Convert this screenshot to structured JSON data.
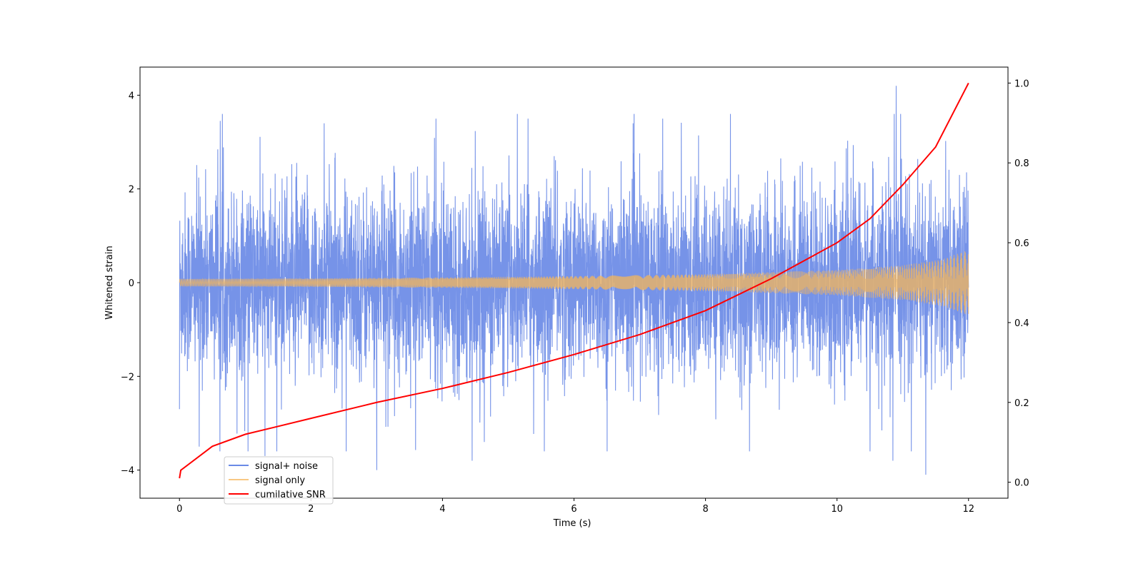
{
  "chart_data": {
    "type": "line",
    "title": "",
    "xlabel": "Time (s)",
    "ylabel": "Whitened strain",
    "y2label": "",
    "xlim": [
      -0.6,
      12.6
    ],
    "ylim": [
      -4.6,
      4.6
    ],
    "y2lim": [
      -0.04,
      1.04
    ],
    "xticks": [
      0,
      2,
      4,
      6,
      8,
      10,
      12
    ],
    "yticks": [
      -4,
      -2,
      0,
      2,
      4
    ],
    "y2ticks": [
      0.0,
      0.2,
      0.4,
      0.6,
      0.8,
      1.0
    ],
    "legend": {
      "placement": "lower-left"
    },
    "colors": {
      "noise": "#6a8ae6",
      "signal": "#f5b65a",
      "snr": "#ff0000"
    },
    "series": [
      {
        "name": "signal+ noise",
        "axis": "left",
        "style": "dense noisy trace, typical amplitude about ±1.5 to ±2, peaks near ±3.5",
        "t_range": [
          0,
          12
        ],
        "notable_extremes": [
          {
            "t": 0.0,
            "y": 2.0
          },
          {
            "t": 0.0,
            "y": -2.7
          },
          {
            "t": 0.3,
            "y": -3.5
          },
          {
            "t": 1.3,
            "y": 3.4
          },
          {
            "t": 1.3,
            "y": -3.7
          },
          {
            "t": 2.2,
            "y": 3.4
          },
          {
            "t": 3.0,
            "y": -4.0
          },
          {
            "t": 3.9,
            "y": 3.5
          },
          {
            "t": 4.45,
            "y": -3.8
          },
          {
            "t": 5.3,
            "y": 3.5
          },
          {
            "t": 6.9,
            "y": 3.4
          },
          {
            "t": 7.35,
            "y": 3.5
          },
          {
            "t": 10.85,
            "y": -3.8
          },
          {
            "t": 10.9,
            "y": 4.2
          },
          {
            "t": 11.35,
            "y": -4.1
          }
        ]
      },
      {
        "name": "signal only",
        "axis": "left",
        "style": "chirp whose envelope grows with time",
        "envelope": {
          "t": [
            0,
            2,
            4,
            6,
            8,
            10,
            11,
            11.6,
            12
          ],
          "amp": [
            0.08,
            0.09,
            0.11,
            0.14,
            0.18,
            0.27,
            0.37,
            0.5,
            0.7
          ]
        }
      },
      {
        "name": "cumilative SNR",
        "axis": "right",
        "x": [
          0,
          0.02,
          0.5,
          1,
          2,
          3,
          4,
          5,
          6,
          7,
          8,
          9,
          10,
          10.5,
          11,
          11.5,
          12
        ],
        "values": [
          0.01,
          0.03,
          0.09,
          0.12,
          0.16,
          0.2,
          0.235,
          0.275,
          0.32,
          0.37,
          0.43,
          0.51,
          0.6,
          0.66,
          0.745,
          0.84,
          1.0
        ]
      }
    ]
  }
}
